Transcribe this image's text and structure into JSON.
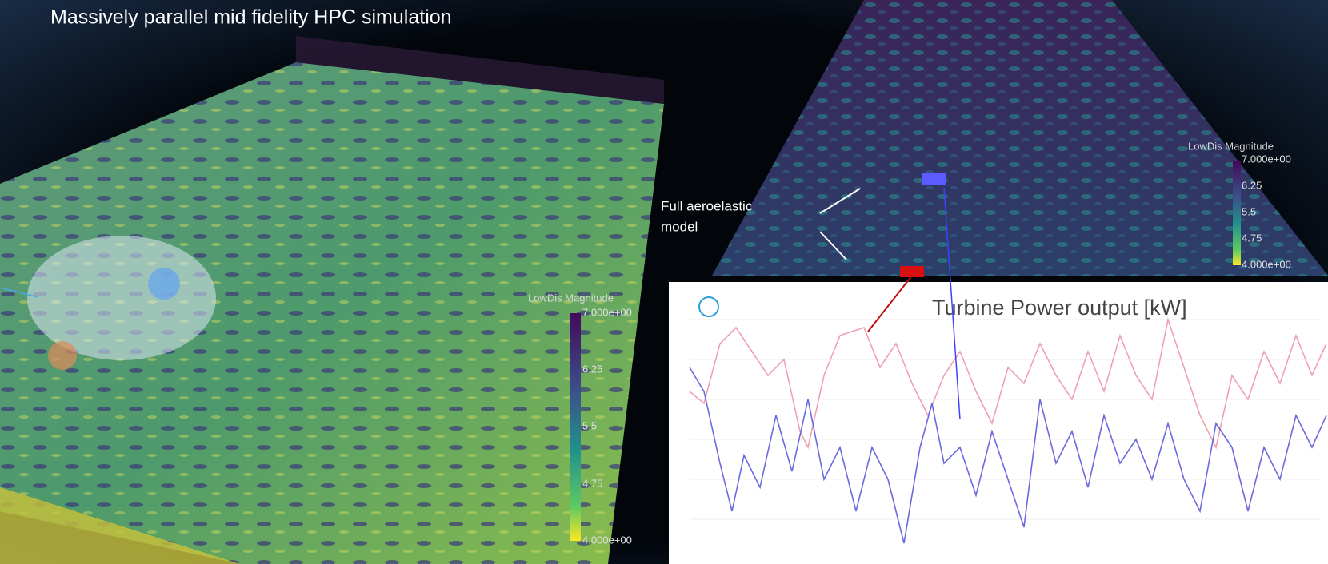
{
  "title": "Massively parallel mid fidelity HPC simulation",
  "left_colorbar": {
    "label": "LowDis Magnitude",
    "ticks": [
      "7.000e+00",
      "6.25",
      "5.5",
      "4.75",
      "4.000e+00"
    ]
  },
  "right_colorbar": {
    "label": "LowDis Magnitude",
    "ticks": [
      "7.000e+00",
      "6.25",
      "5.5",
      "4.75",
      "4.000e+00"
    ]
  },
  "annotation": {
    "lines": [
      "Full aeroelastic",
      "model"
    ]
  },
  "power_chart": {
    "title": "Turbine Power output [kW]"
  }
}
